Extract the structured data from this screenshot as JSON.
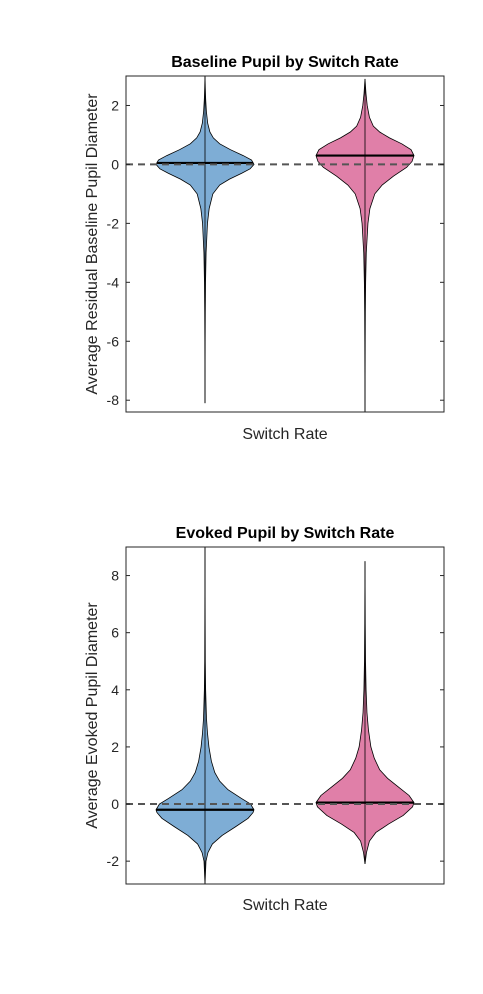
{
  "chart_data": [
    {
      "type": "violin",
      "title": "Baseline Pupil by Switch Rate",
      "xlabel": "Switch Rate",
      "ylabel": "Average Residual Baseline Pupil Diameter",
      "ylim": [
        -8.4,
        3.0
      ],
      "yticks": [
        -8,
        -6,
        -4,
        -2,
        0,
        2
      ],
      "tick_labels": [
        "-8",
        "-6",
        "-4",
        "-2",
        "0",
        "2"
      ],
      "reference_line": 0,
      "series": [
        {
          "color": "#7eadd5",
          "median": 0.05,
          "min": -8.1,
          "max": 3.0,
          "density": [
            [
              -8.1,
              0.0
            ],
            [
              -6.0,
              0.003
            ],
            [
              -5.0,
              0.006
            ],
            [
              -4.0,
              0.011
            ],
            [
              -3.0,
              0.022
            ],
            [
              -2.0,
              0.05
            ],
            [
              -1.5,
              0.085
            ],
            [
              -1.0,
              0.16
            ],
            [
              -0.7,
              0.3
            ],
            [
              -0.5,
              0.5
            ],
            [
              -0.3,
              0.75
            ],
            [
              -0.15,
              0.92
            ],
            [
              0.0,
              1.0
            ],
            [
              0.15,
              0.95
            ],
            [
              0.3,
              0.78
            ],
            [
              0.5,
              0.52
            ],
            [
              0.7,
              0.3
            ],
            [
              0.9,
              0.17
            ],
            [
              1.1,
              0.1
            ],
            [
              1.4,
              0.055
            ],
            [
              1.8,
              0.028
            ],
            [
              2.2,
              0.014
            ],
            [
              2.6,
              0.006
            ],
            [
              3.0,
              0.0
            ]
          ]
        },
        {
          "color": "#e07fa8",
          "median": 0.3,
          "min": -8.4,
          "max": 2.9,
          "density": [
            [
              -8.4,
              0.0
            ],
            [
              -6.0,
              0.004
            ],
            [
              -5.0,
              0.007
            ],
            [
              -4.0,
              0.013
            ],
            [
              -3.0,
              0.026
            ],
            [
              -2.0,
              0.06
            ],
            [
              -1.5,
              0.1
            ],
            [
              -1.0,
              0.2
            ],
            [
              -0.7,
              0.35
            ],
            [
              -0.4,
              0.58
            ],
            [
              -0.1,
              0.85
            ],
            [
              0.1,
              0.96
            ],
            [
              0.3,
              1.0
            ],
            [
              0.5,
              0.94
            ],
            [
              0.7,
              0.75
            ],
            [
              0.9,
              0.5
            ],
            [
              1.1,
              0.3
            ],
            [
              1.3,
              0.17
            ],
            [
              1.6,
              0.09
            ],
            [
              2.0,
              0.045
            ],
            [
              2.4,
              0.02
            ],
            [
              2.9,
              0.0
            ]
          ]
        }
      ]
    },
    {
      "type": "violin",
      "title": "Evoked Pupil by Switch Rate",
      "xlabel": "Switch Rate",
      "ylabel": "Average Evoked Pupil Diameter",
      "ylim": [
        -2.8,
        9.0
      ],
      "yticks": [
        -2,
        0,
        2,
        4,
        6,
        8
      ],
      "tick_labels": [
        "-2",
        "0",
        "2",
        "4",
        "6",
        "8"
      ],
      "reference_line": 0,
      "series": [
        {
          "color": "#7eadd5",
          "median": -0.2,
          "min": -2.8,
          "max": 9.0,
          "density": [
            [
              -2.8,
              0.0
            ],
            [
              -2.0,
              0.02
            ],
            [
              -1.7,
              0.06
            ],
            [
              -1.4,
              0.15
            ],
            [
              -1.1,
              0.35
            ],
            [
              -0.8,
              0.62
            ],
            [
              -0.5,
              0.88
            ],
            [
              -0.3,
              0.98
            ],
            [
              -0.2,
              1.0
            ],
            [
              0.0,
              0.93
            ],
            [
              0.2,
              0.74
            ],
            [
              0.5,
              0.47
            ],
            [
              0.8,
              0.3
            ],
            [
              1.1,
              0.2
            ],
            [
              1.5,
              0.13
            ],
            [
              2.0,
              0.08
            ],
            [
              2.5,
              0.05
            ],
            [
              3.0,
              0.03
            ],
            [
              4.0,
              0.013
            ],
            [
              5.0,
              0.006
            ],
            [
              6.5,
              0.003
            ],
            [
              9.0,
              0.0
            ]
          ]
        },
        {
          "color": "#e07fa8",
          "median": 0.05,
          "min": -2.1,
          "max": 8.5,
          "density": [
            [
              -2.1,
              0.0
            ],
            [
              -1.7,
              0.03
            ],
            [
              -1.3,
              0.09
            ],
            [
              -1.0,
              0.22
            ],
            [
              -0.7,
              0.48
            ],
            [
              -0.4,
              0.78
            ],
            [
              -0.1,
              0.97
            ],
            [
              0.05,
              1.0
            ],
            [
              0.3,
              0.9
            ],
            [
              0.6,
              0.68
            ],
            [
              0.9,
              0.46
            ],
            [
              1.2,
              0.3
            ],
            [
              1.6,
              0.19
            ],
            [
              2.0,
              0.12
            ],
            [
              2.6,
              0.07
            ],
            [
              3.2,
              0.04
            ],
            [
              4.0,
              0.022
            ],
            [
              5.0,
              0.011
            ],
            [
              6.3,
              0.005
            ],
            [
              8.5,
              0.0
            ]
          ]
        }
      ]
    }
  ]
}
